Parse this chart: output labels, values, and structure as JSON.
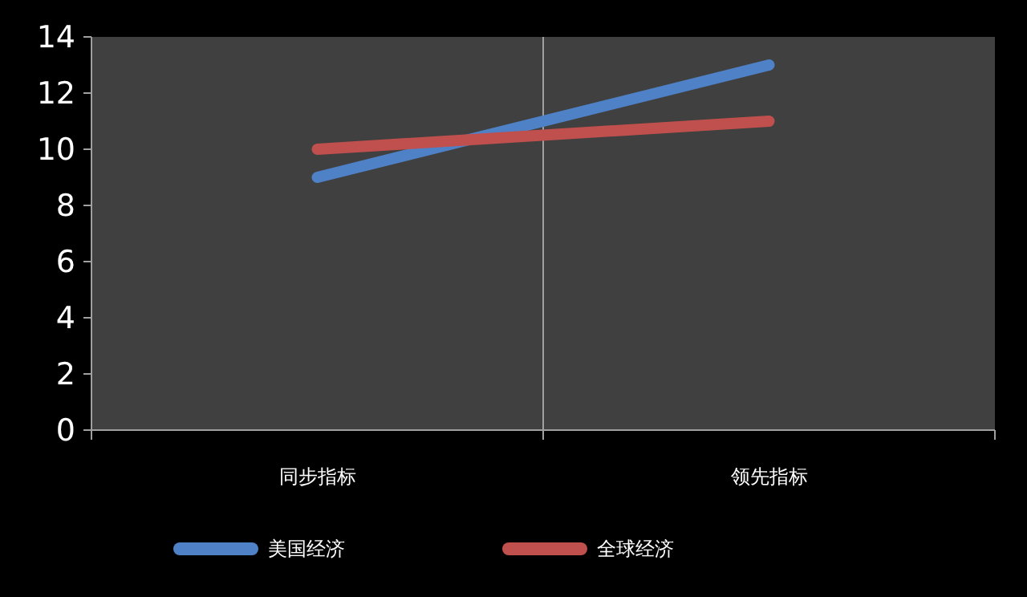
{
  "chart_data": {
    "type": "line",
    "categories": [
      "同步指标",
      "领先指标"
    ],
    "series": [
      {
        "name": "美国经济",
        "color": "#4f81c7",
        "values": [
          9,
          13
        ]
      },
      {
        "name": "全球经济",
        "color": "#c0504d",
        "values": [
          10,
          11
        ]
      }
    ],
    "ylim": [
      0,
      14
    ],
    "yticks": [
      0,
      2,
      4,
      6,
      8,
      10,
      12,
      14
    ],
    "grid": "x",
    "legend": "bottom",
    "marker": "none",
    "line_style": "solid"
  }
}
